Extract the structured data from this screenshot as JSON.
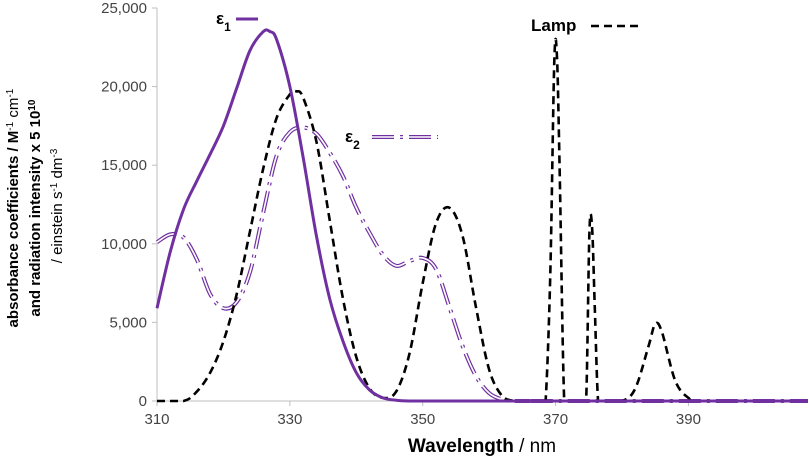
{
  "chart_data": {
    "type": "line",
    "xlabel": {
      "bold": "Wavelength",
      "rest": "  / nm"
    },
    "ylabel_lines": [
      {
        "main": "absorbance coefficients / M",
        "sup1": "-1",
        "mid": " cm",
        "sup2": "-1"
      },
      {
        "main": "and radiation intensity x 5 10",
        "sup1": "10"
      },
      {
        "main": "/ einstein s",
        "sup1": "-1",
        "mid": " dm",
        "sup2": "-3"
      }
    ],
    "xlim": [
      310,
      408
    ],
    "ylim": [
      0,
      25000
    ],
    "x_ticks": [
      310,
      330,
      350,
      370,
      390
    ],
    "y_ticks": [
      0,
      5000,
      10000,
      15000,
      20000,
      25000
    ],
    "y_tick_labels": [
      "0",
      "5,000",
      "10,000",
      "15,000",
      "20,000",
      "25,000"
    ],
    "legend_placement": "inline",
    "series": [
      {
        "name": "ε1",
        "label": {
          "main": "ε",
          "sub": "1"
        },
        "color": "#7030A0",
        "style": "solid",
        "x": [
          310,
          312,
          314,
          316,
          318,
          320,
          322,
          324,
          326,
          327,
          328,
          330,
          332,
          334,
          336,
          338,
          340,
          342,
          344,
          346,
          348,
          350,
          352,
          360,
          408
        ],
        "y": [
          5900,
          9500,
          12200,
          14000,
          15700,
          17500,
          19900,
          22300,
          23500,
          23500,
          23000,
          20000,
          15500,
          10500,
          6500,
          3800,
          1800,
          700,
          200,
          50,
          0,
          0,
          0,
          0,
          0
        ]
      },
      {
        "name": "ε2",
        "label": {
          "main": "ε",
          "sub": "2"
        },
        "color": "#7030A0",
        "style": "dashdot-double",
        "x": [
          310,
          312,
          314,
          316,
          318,
          320,
          322,
          324,
          326,
          328,
          330,
          332,
          334,
          336,
          338,
          340,
          342,
          344,
          346,
          348,
          350,
          352,
          354,
          356,
          358,
          360,
          362,
          364,
          366,
          368,
          408
        ],
        "y": [
          10100,
          10600,
          10400,
          9000,
          6800,
          5900,
          6300,
          8200,
          12000,
          15600,
          17100,
          17400,
          17000,
          15800,
          14300,
          12300,
          10700,
          9300,
          8600,
          8900,
          9100,
          8400,
          6000,
          3500,
          1600,
          500,
          100,
          0,
          0,
          0,
          0
        ]
      },
      {
        "name": "Lamp",
        "label": {
          "main": "Lamp"
        },
        "color": "#000000",
        "style": "dashed",
        "x": [
          310,
          314,
          316,
          318,
          320,
          322,
          324,
          326,
          328,
          330,
          331,
          332,
          334,
          336,
          338,
          340,
          342,
          344,
          346,
          348,
          350,
          352,
          354,
          356,
          358,
          360,
          362,
          364,
          366,
          368,
          368.5,
          369.2,
          369.8,
          370.2,
          370.6,
          371.3,
          372,
          374,
          374.6,
          375.1,
          375.5,
          375.9,
          376.4,
          377,
          380,
          382,
          384,
          385,
          386,
          388,
          390,
          392,
          408
        ],
        "y": [
          0,
          0,
          600,
          1800,
          3800,
          6800,
          10800,
          14800,
          18000,
          19500,
          19700,
          19300,
          16500,
          11500,
          6500,
          2800,
          800,
          200,
          600,
          3000,
          7500,
          11300,
          12300,
          10500,
          6000,
          2000,
          300,
          0,
          0,
          0,
          0,
          8000,
          21500,
          22000,
          15000,
          0,
          0,
          0,
          0,
          10800,
          11000,
          6000,
          0,
          0,
          0,
          800,
          3500,
          4900,
          4400,
          1300,
          200,
          0,
          0
        ]
      }
    ]
  }
}
